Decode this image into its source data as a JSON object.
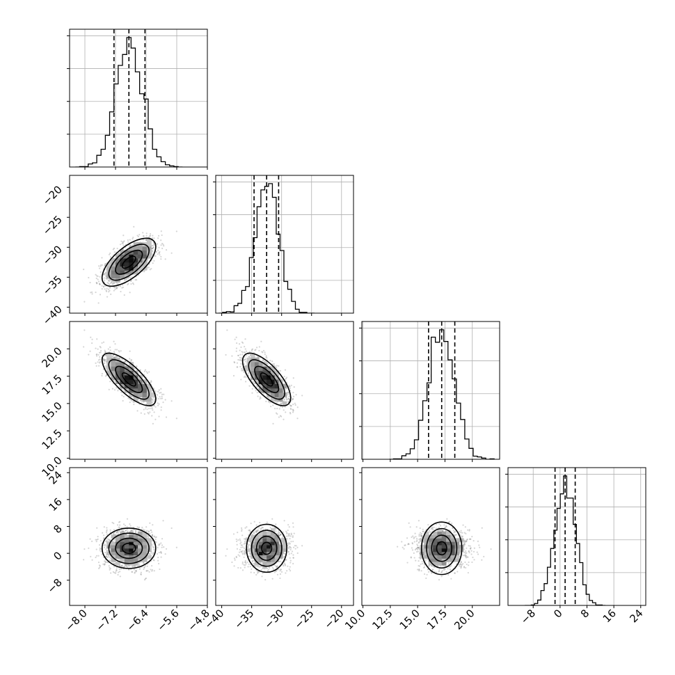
{
  "chart_data": {
    "type": "corner",
    "n_params": 4,
    "axes_color": "#000000",
    "grid_color": "#b0b0b0",
    "axis_ranges": [
      [
        -8.4,
        -4.8
      ],
      [
        -41,
        -18
      ],
      [
        9.9,
        22.5
      ],
      [
        -15.5,
        25.5
      ]
    ],
    "ticks": [
      [
        "−8.0",
        "−7.2",
        "−6.4",
        "−5.6",
        "−4.8"
      ],
      [
        "−40",
        "−35",
        "−30",
        "−25",
        "−20"
      ],
      [
        "10.0",
        "12.5",
        "15.0",
        "17.5",
        "20.0"
      ],
      [
        "−8",
        "0",
        "8",
        "16",
        "24"
      ]
    ],
    "tick_values": [
      [
        -8.0,
        -7.2,
        -6.4,
        -5.6,
        -4.8
      ],
      [
        -40,
        -35,
        -30,
        -25,
        -20
      ],
      [
        10.0,
        12.5,
        15.0,
        17.5,
        20.0
      ],
      [
        -8,
        0,
        8,
        16,
        24
      ]
    ],
    "means": [
      -6.85,
      -32.5,
      17.2,
      1.5
    ],
    "sds": [
      0.35,
      2.0,
      1.2,
      3.0
    ],
    "quantiles": [
      [
        -7.24,
        -6.85,
        -6.43
      ],
      [
        -34.6,
        -32.5,
        -30.5
      ],
      [
        16.0,
        17.2,
        18.4
      ],
      [
        -1.5,
        1.5,
        4.5
      ]
    ],
    "correlations": [
      [
        1.0,
        0.65,
        -0.75,
        0.0
      ],
      [
        0.65,
        1.0,
        -0.7,
        0.0
      ],
      [
        -0.75,
        -0.7,
        1.0,
        0.0
      ],
      [
        0.0,
        0.0,
        0.0,
        1.0
      ]
    ],
    "hist_bins": 25,
    "contour_levels_sigma": [
      0.5,
      1.0,
      1.5,
      2.0
    ],
    "grid": true
  }
}
